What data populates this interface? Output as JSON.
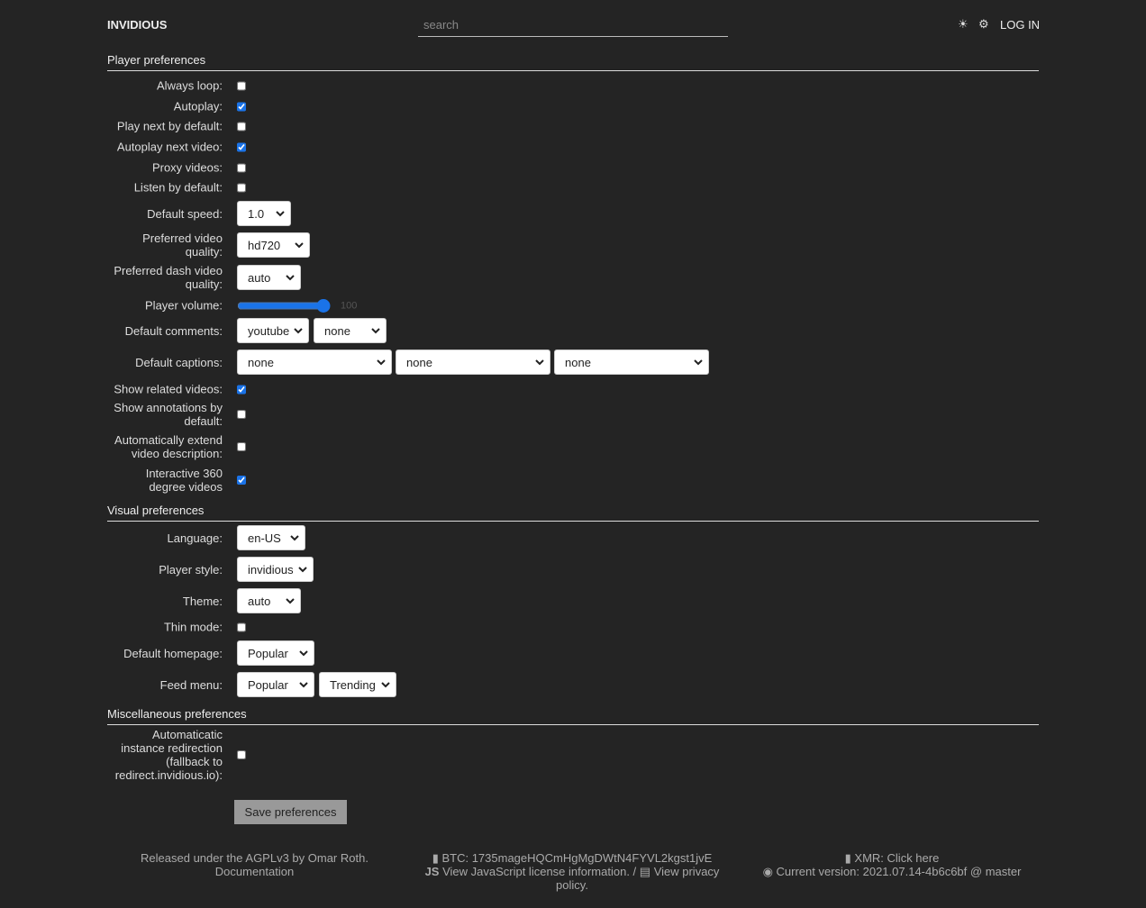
{
  "header": {
    "brand": "INVIDIOUS",
    "search_placeholder": "search",
    "theme_icon": "sun-icon",
    "settings_icon": "gear-icon",
    "login": "LOG IN"
  },
  "sections": [
    {
      "title": "Player preferences",
      "items": [
        {
          "label": "Always loop:",
          "type": "checkbox",
          "checked": false
        },
        {
          "label": "Autoplay:",
          "type": "checkbox",
          "checked": true
        },
        {
          "label": "Play next by default:",
          "type": "checkbox",
          "checked": false
        },
        {
          "label": "Autoplay next video:",
          "type": "checkbox",
          "checked": true
        },
        {
          "label": "Proxy videos:",
          "type": "checkbox",
          "checked": false
        },
        {
          "label": "Listen by default:",
          "type": "checkbox",
          "checked": false
        },
        {
          "label": "Default speed:",
          "type": "select",
          "values": [
            "1.0"
          ]
        },
        {
          "label": "Preferred video quality:",
          "type": "select",
          "values": [
            "hd720"
          ]
        },
        {
          "label": "Preferred dash video quality:",
          "type": "select",
          "values": [
            "auto"
          ]
        },
        {
          "label": "Player volume:",
          "type": "range",
          "value": 100
        },
        {
          "label": "Default comments:",
          "type": "select",
          "values": [
            "youtube",
            "none"
          ]
        },
        {
          "label": "Default captions:",
          "type": "select",
          "values": [
            "none",
            "none",
            "none"
          ]
        },
        {
          "label": "Show related videos:",
          "type": "checkbox",
          "checked": true
        },
        {
          "label": "Show annotations by default:",
          "type": "checkbox",
          "checked": false
        },
        {
          "label": "Automatically extend video description:",
          "type": "checkbox",
          "checked": false
        },
        {
          "label": "Interactive 360 degree videos",
          "type": "checkbox",
          "checked": true
        }
      ]
    },
    {
      "title": "Visual preferences",
      "items": [
        {
          "label": "Language:",
          "type": "select",
          "values": [
            "en-US"
          ]
        },
        {
          "label": "Player style:",
          "type": "select",
          "values": [
            "invidious"
          ]
        },
        {
          "label": "Theme:",
          "type": "select",
          "values": [
            "auto"
          ]
        },
        {
          "label": "Thin mode:",
          "type": "checkbox",
          "checked": false
        },
        {
          "label": "Default homepage:",
          "type": "select",
          "values": [
            "Popular"
          ]
        },
        {
          "label": "Feed menu:",
          "type": "select",
          "values": [
            "Popular",
            "Trending"
          ]
        }
      ]
    },
    {
      "title": "Miscellaneous preferences",
      "items": [
        {
          "label": "Automaticatic instance redirection (fallback to redirect.invidious.io):",
          "type": "checkbox",
          "checked": false
        }
      ]
    }
  ],
  "save_label": "Save preferences",
  "footer": {
    "released": "Released under the AGPLv3 by Omar Roth.",
    "documentation": "Documentation",
    "btc": "BTC: 1735mageHQCmHgMgDWtN4FYVL2kgst1jvE",
    "js_license": "View JavaScript license information.",
    "sep": " / ",
    "privacy": "View privacy policy.",
    "xmr": "XMR: Click here",
    "version": "Current version: 2021.07.14-4b6c6bf @ master"
  }
}
